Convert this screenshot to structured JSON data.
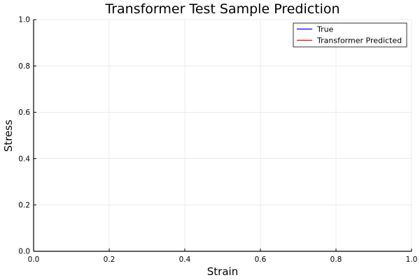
{
  "chart_data": {
    "type": "line",
    "title": "Transformer Test Sample Prediction",
    "xlabel": "Strain",
    "ylabel": "Stress",
    "xlim": [
      0,
      1
    ],
    "ylim": [
      0,
      1
    ],
    "xticks": [
      "0.0",
      "0.2",
      "0.4",
      "0.6",
      "0.8",
      "1.0"
    ],
    "yticks": [
      "0.0",
      "0.2",
      "0.4",
      "0.6",
      "0.8",
      "1.0"
    ],
    "grid": true,
    "legend_position": "top-right",
    "series": [
      {
        "name": "True",
        "color": "#0000ff",
        "x": [],
        "y": []
      },
      {
        "name": "Transformer Predicted",
        "color": "#ff0000",
        "x": [],
        "y": []
      }
    ]
  }
}
